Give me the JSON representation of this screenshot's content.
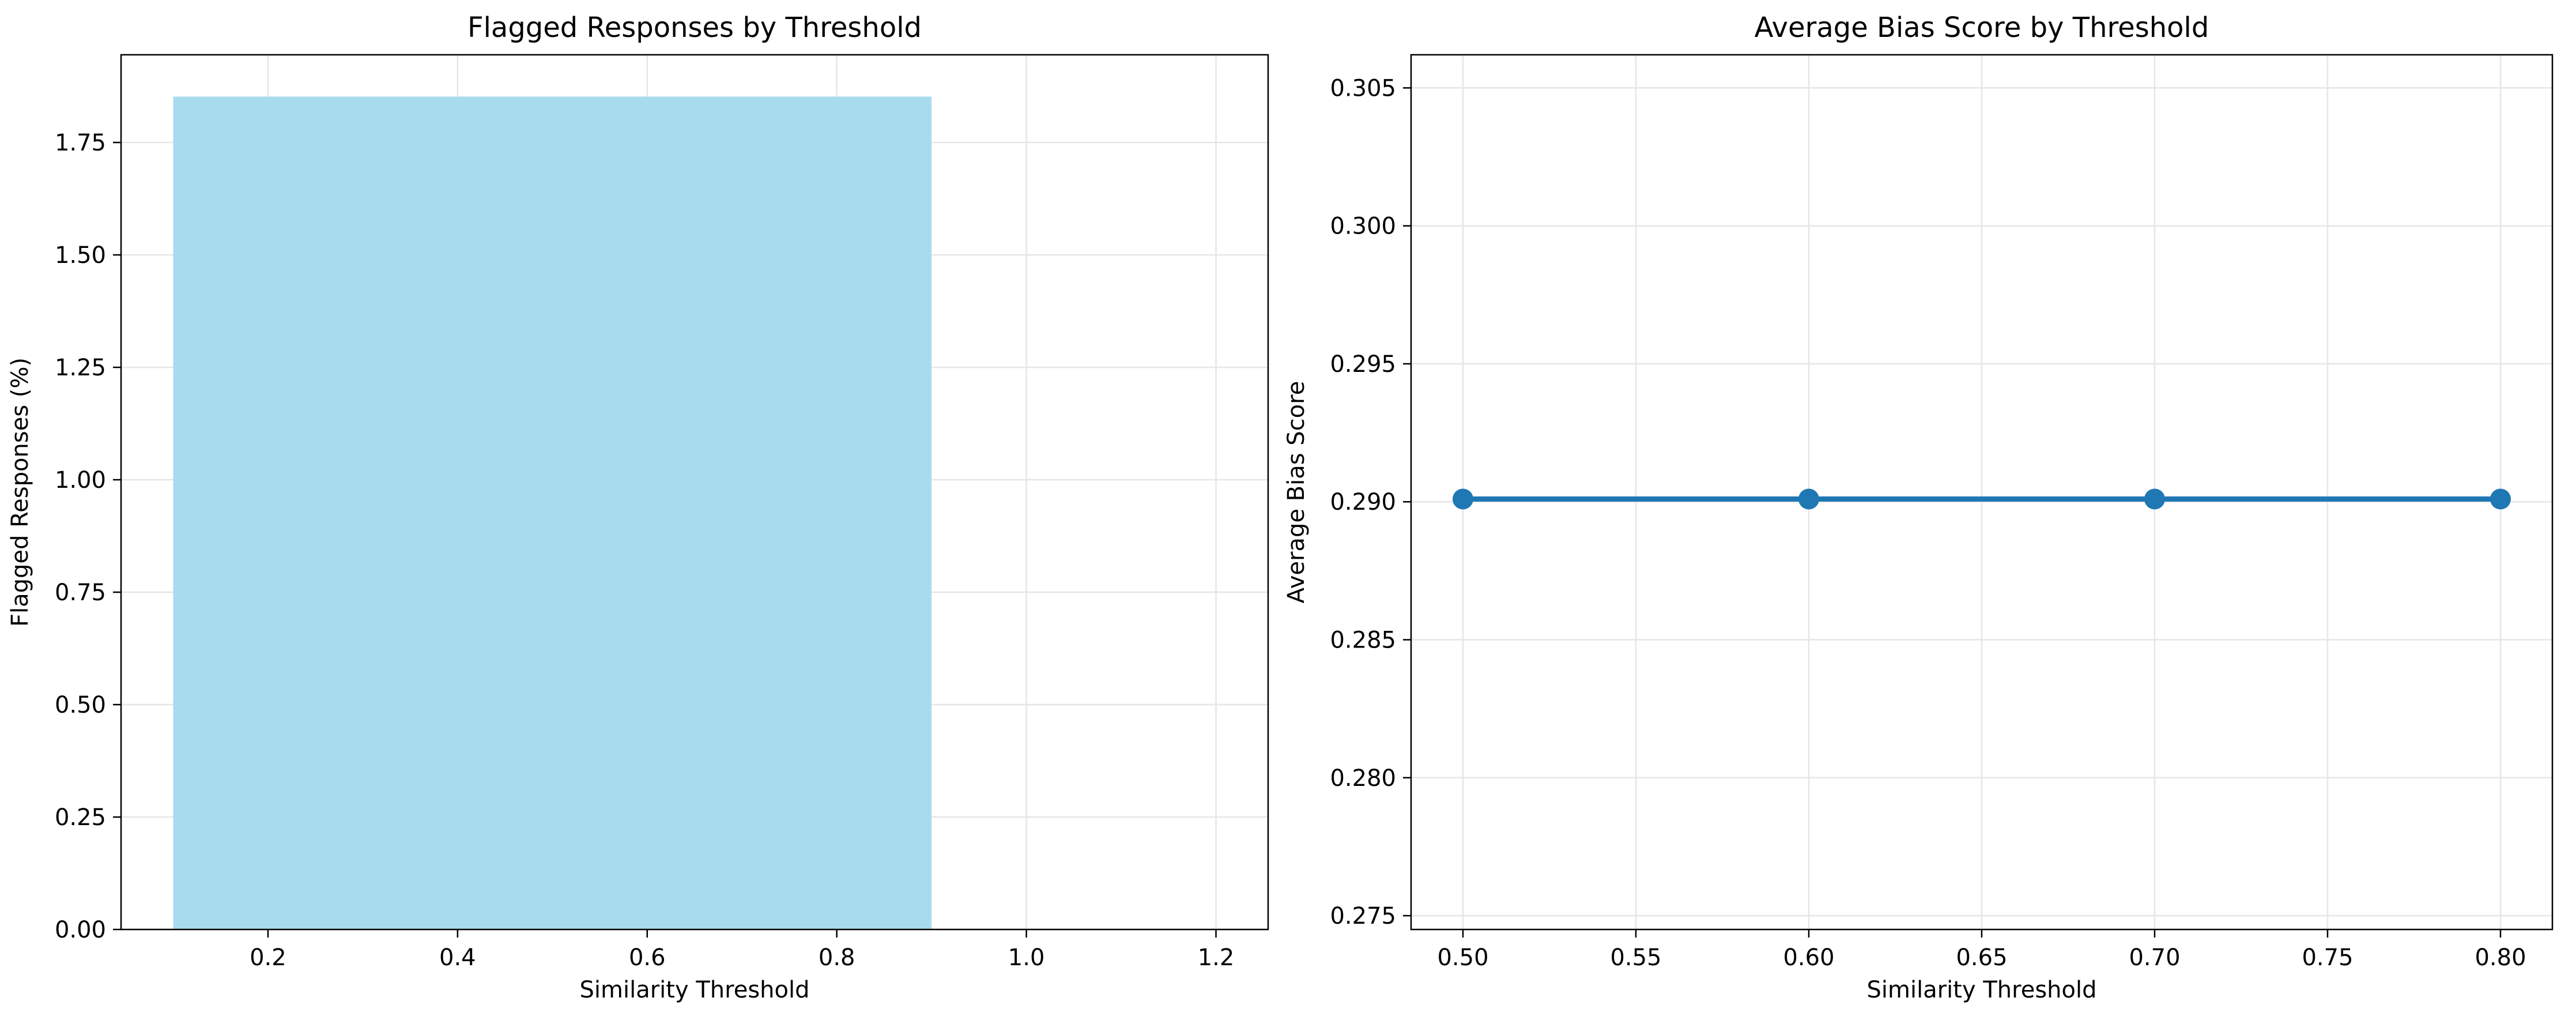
{
  "chart_data": [
    {
      "type": "bar",
      "title": "Flagged Responses by Threshold",
      "xlabel": "Similarity Threshold",
      "ylabel": "Flagged Responses (%)",
      "bars": [
        {
          "x_start": 0.1,
          "x_end": 0.9,
          "value": 1.852
        }
      ],
      "xlim": [
        0.045,
        1.255
      ],
      "ylim": [
        0,
        1.945
      ],
      "xticks": [
        0.2,
        0.4,
        0.6,
        0.8,
        1.0,
        1.2
      ],
      "xtick_labels": [
        "0.2",
        "0.4",
        "0.6",
        "0.8",
        "1.0",
        "1.2"
      ],
      "yticks": [
        0,
        0.25,
        0.5,
        0.75,
        1.0,
        1.25,
        1.5,
        1.75
      ],
      "ytick_labels": [
        "0.00",
        "0.25",
        "0.50",
        "0.75",
        "1.00",
        "1.25",
        "1.50",
        "1.75"
      ],
      "grid": true,
      "bar_color": "#a9dbee",
      "grid_color": "#e6e6e6"
    },
    {
      "type": "line",
      "title": "Average Bias Score by Threshold",
      "xlabel": "Similarity Threshold",
      "ylabel": "Average Bias Score",
      "x": [
        0.5,
        0.6,
        0.7,
        0.8
      ],
      "y": [
        0.2901,
        0.2901,
        0.2901,
        0.2901
      ],
      "xlim": [
        0.485,
        0.815
      ],
      "ylim": [
        0.2745,
        0.3062
      ],
      "xticks": [
        0.5,
        0.55,
        0.6,
        0.65,
        0.7,
        0.75,
        0.8
      ],
      "xtick_labels": [
        "0.50",
        "0.55",
        "0.60",
        "0.65",
        "0.70",
        "0.75",
        "0.80"
      ],
      "yticks": [
        0.275,
        0.28,
        0.285,
        0.29,
        0.295,
        0.3,
        0.305
      ],
      "ytick_labels": [
        "0.275",
        "0.280",
        "0.285",
        "0.290",
        "0.295",
        "0.300",
        "0.305"
      ],
      "grid": true,
      "line_color": "#1f77b4",
      "grid_color": "#e6e6e6"
    }
  ]
}
